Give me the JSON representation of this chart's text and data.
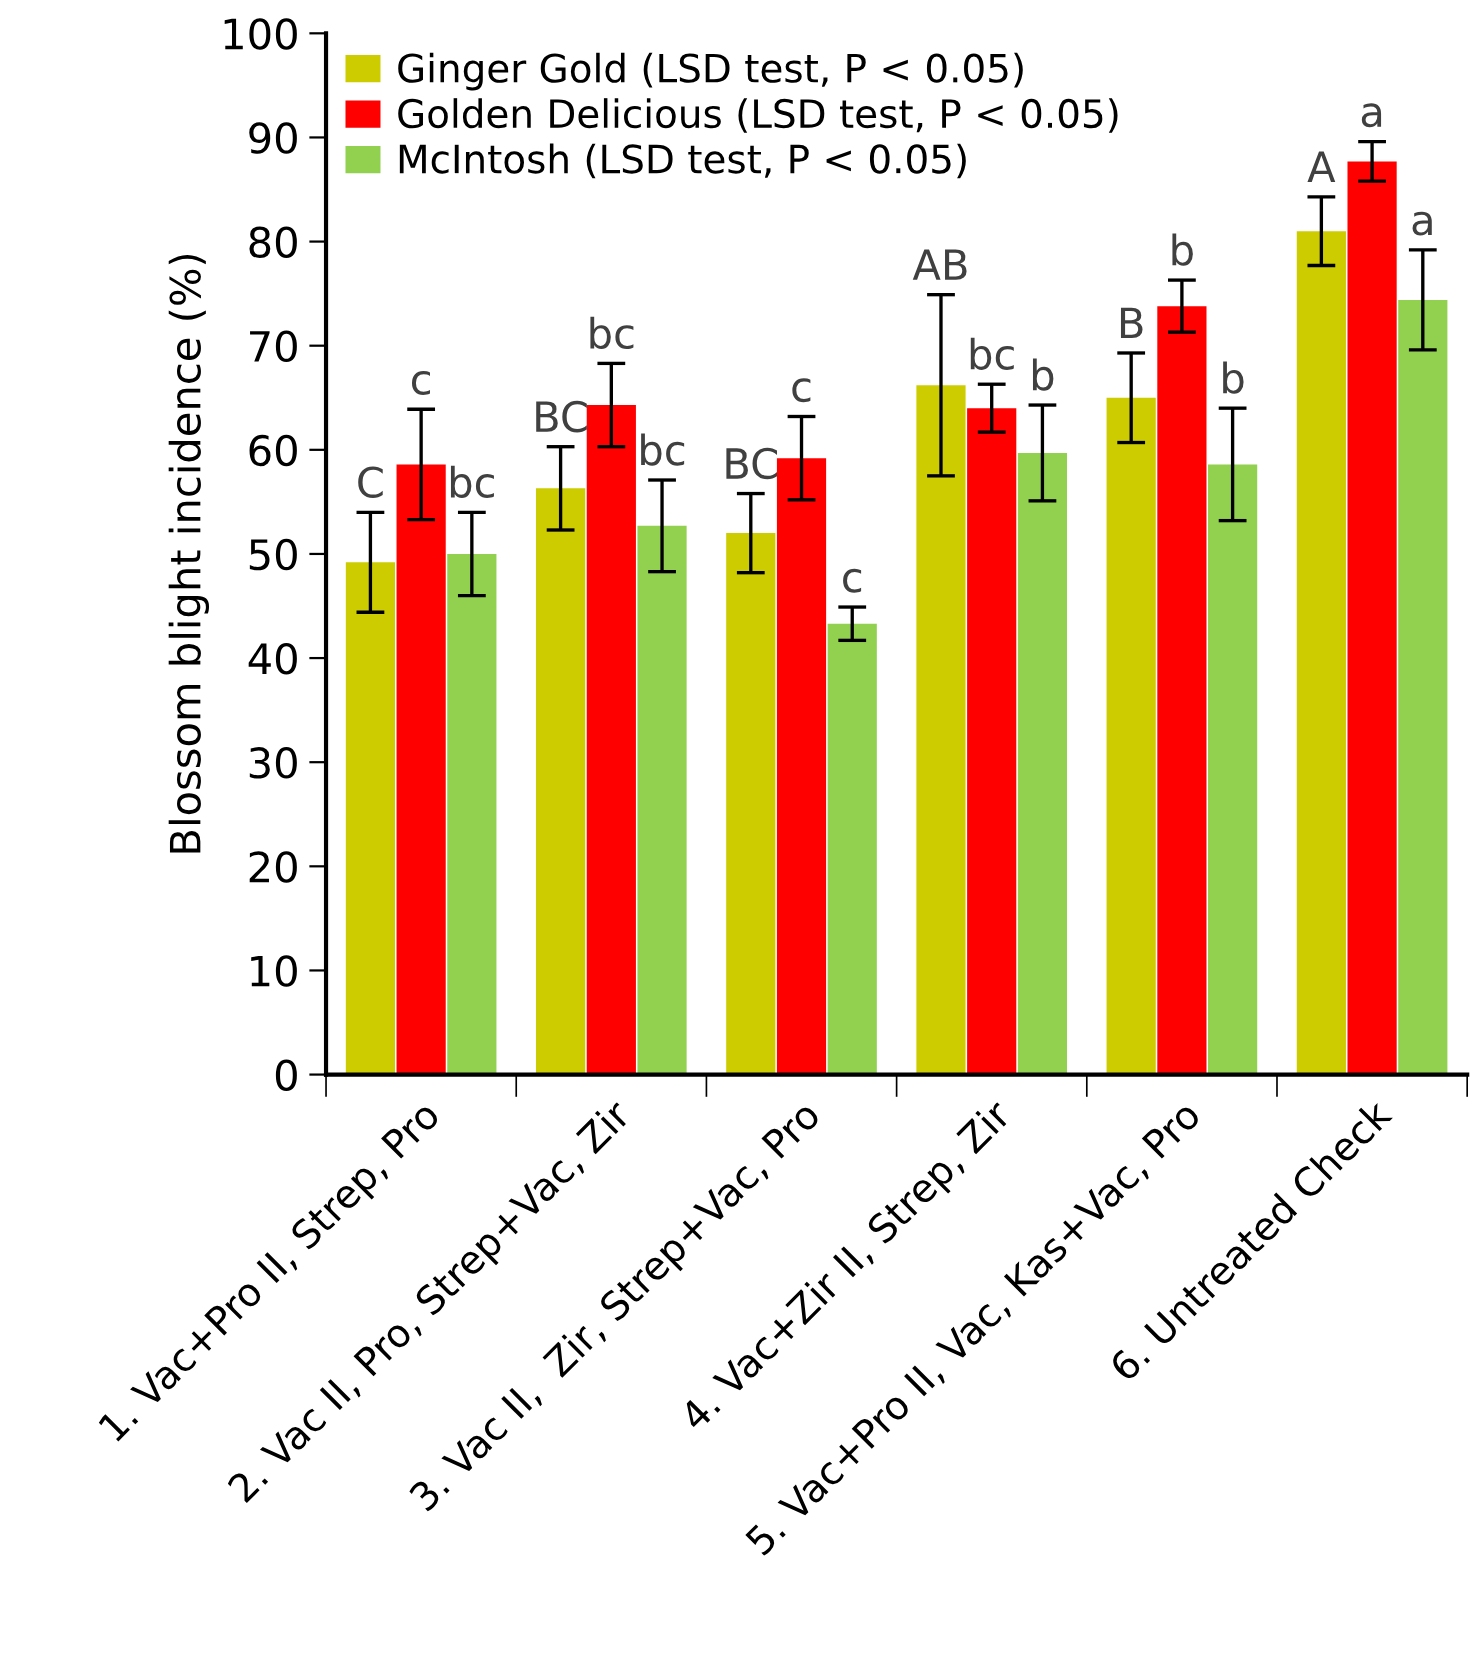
{
  "chart_data": {
    "type": "bar",
    "ylabel": "Blossom blight incidence (%)",
    "categories": [
      "1. Vac+Pro II, Strep, Pro",
      "2. Vac II, Pro, Strep+Vac, Zir",
      "3. Vac II,  Zir, Strep+Vac, Pro",
      "4. Vac+Zir II, Strep, Zir",
      "5. Vac+Pro II, Vac, Kas+Vac, Pro",
      "6. Untreated Check"
    ],
    "series": [
      {
        "name": "Ginger Gold (LSD test, P < 0.05)",
        "color": "#cccc00",
        "values": [
          49.2,
          56.3,
          52.0,
          66.2,
          65.0,
          81.0
        ],
        "errors": [
          4.8,
          4.0,
          3.8,
          8.7,
          4.3,
          3.3
        ],
        "value_labels": [
          "C",
          "BC",
          "BC",
          "AB",
          "B",
          "A"
        ]
      },
      {
        "name": "Golden Delicious (LSD test, P < 0.05)",
        "color": "#ff0000",
        "values": [
          58.6,
          64.3,
          59.2,
          64.0,
          73.8,
          87.7
        ],
        "errors": [
          5.3,
          4.0,
          4.0,
          2.3,
          2.5,
          1.9
        ],
        "value_labels": [
          "c",
          "bc",
          "c",
          "bc",
          "b",
          "a"
        ]
      },
      {
        "name": "McIntosh (LSD test, P < 0.05)",
        "color": "#92d050",
        "values": [
          50.0,
          52.7,
          43.3,
          59.7,
          58.6,
          74.4
        ],
        "errors": [
          4.0,
          4.4,
          1.6,
          4.6,
          5.4,
          4.8
        ],
        "value_labels": [
          "bc",
          "bc",
          "c",
          "b",
          "b",
          "a"
        ]
      }
    ],
    "ylim": [
      0,
      100
    ],
    "yticks": [
      0,
      10,
      20,
      30,
      40,
      50,
      60,
      70,
      80,
      90,
      100
    ],
    "grid": false,
    "legend": "top left"
  }
}
